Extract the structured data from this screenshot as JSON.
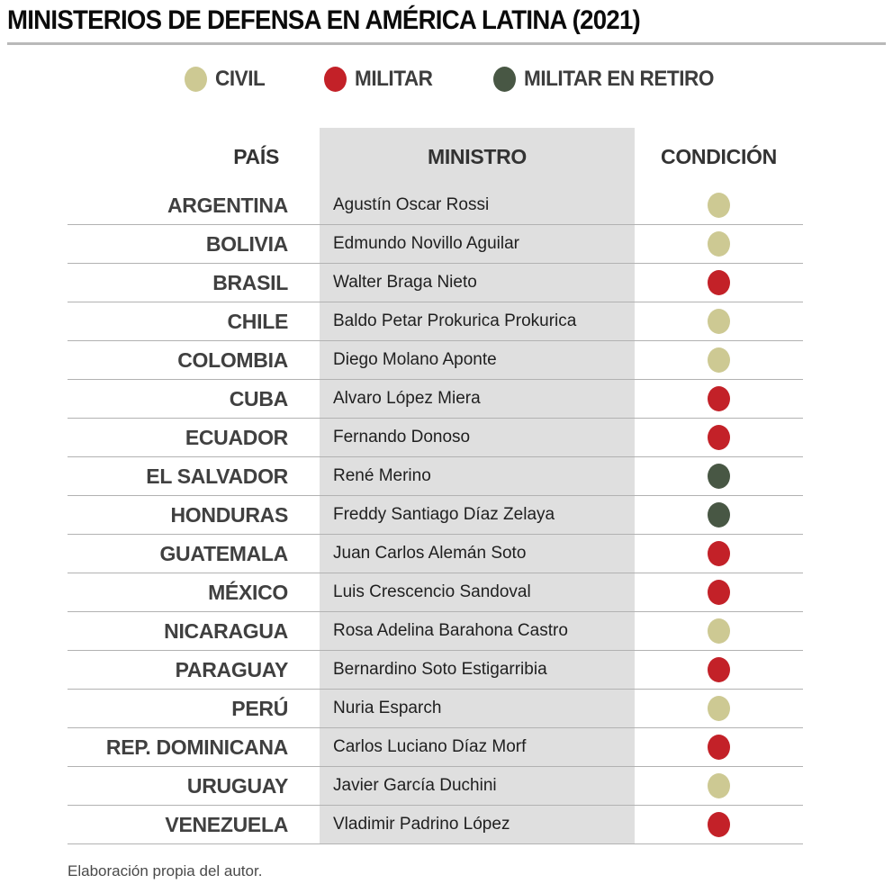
{
  "title": "MINISTERIOS DE DEFENSA EN AMÉRICA LATINA (2021)",
  "colors": {
    "civil": "#cdc993",
    "militar": "#c32128",
    "retiro": "#485744",
    "band": "#dfdfdf"
  },
  "legend": {
    "civil_label": "CIVIL",
    "militar_label": "MILITAR",
    "retiro_label": "MILITAR EN RETIRO"
  },
  "table": {
    "headers": {
      "pais": "PAÍS",
      "ministro": "MINISTRO",
      "condicion": "CONDICIÓN"
    },
    "rows": [
      {
        "pais": "ARGENTINA",
        "ministro": "Agustín Oscar Rossi",
        "condicion": "civil"
      },
      {
        "pais": "BOLIVIA",
        "ministro": "Edmundo Novillo Aguilar",
        "condicion": "civil"
      },
      {
        "pais": "BRASIL",
        "ministro": "Walter Braga Nieto",
        "condicion": "militar"
      },
      {
        "pais": "CHILE",
        "ministro": "Baldo Petar Prokurica Prokurica",
        "condicion": "civil"
      },
      {
        "pais": "COLOMBIA",
        "ministro": "Diego Molano Aponte",
        "condicion": "civil"
      },
      {
        "pais": "CUBA",
        "ministro": "Alvaro López Miera",
        "condicion": "militar"
      },
      {
        "pais": "ECUADOR",
        "ministro": "Fernando Donoso",
        "condicion": "militar"
      },
      {
        "pais": "EL SALVADOR",
        "ministro": "René Merino",
        "condicion": "retiro"
      },
      {
        "pais": "HONDURAS",
        "ministro": "Freddy Santiago Díaz Zelaya",
        "condicion": "retiro"
      },
      {
        "pais": "GUATEMALA",
        "ministro": "Juan Carlos Alemán Soto",
        "condicion": "militar"
      },
      {
        "pais": "MÉXICO",
        "ministro": "Luis Crescencio Sandoval",
        "condicion": "militar"
      },
      {
        "pais": "NICARAGUA",
        "ministro": "Rosa Adelina Barahona Castro",
        "condicion": "civil"
      },
      {
        "pais": "PARAGUAY",
        "ministro": "Bernardino Soto Estigarribia",
        "condicion": "militar"
      },
      {
        "pais": "PERÚ",
        "ministro": "Nuria Esparch",
        "condicion": "civil"
      },
      {
        "pais": "REP. DOMINICANA",
        "ministro": "Carlos Luciano Díaz Morf",
        "condicion": "militar"
      },
      {
        "pais": "URUGUAY",
        "ministro": "Javier García Duchini",
        "condicion": "civil"
      },
      {
        "pais": "VENEZUELA",
        "ministro": "Vladimir Padrino López",
        "condicion": "militar"
      }
    ]
  },
  "footer": "Elaboración propia del autor.",
  "chart_data": {
    "type": "table",
    "title": "MINISTERIOS DE DEFENSA EN AMÉRICA LATINA (2021)",
    "columns": [
      "PAÍS",
      "MINISTRO",
      "CONDICIÓN"
    ],
    "legend": [
      {
        "label": "CIVIL",
        "color": "#cdc993"
      },
      {
        "label": "MILITAR",
        "color": "#c32128"
      },
      {
        "label": "MILITAR EN RETIRO",
        "color": "#485744"
      }
    ],
    "rows": [
      [
        "ARGENTINA",
        "Agustín Oscar Rossi",
        "CIVIL"
      ],
      [
        "BOLIVIA",
        "Edmundo Novillo Aguilar",
        "CIVIL"
      ],
      [
        "BRASIL",
        "Walter Braga Nieto",
        "MILITAR"
      ],
      [
        "CHILE",
        "Baldo Petar Prokurica Prokurica",
        "CIVIL"
      ],
      [
        "COLOMBIA",
        "Diego Molano Aponte",
        "CIVIL"
      ],
      [
        "CUBA",
        "Alvaro López Miera",
        "MILITAR"
      ],
      [
        "ECUADOR",
        "Fernando Donoso",
        "MILITAR"
      ],
      [
        "EL SALVADOR",
        "René Merino",
        "MILITAR EN RETIRO"
      ],
      [
        "HONDURAS",
        "Freddy Santiago Díaz Zelaya",
        "MILITAR EN RETIRO"
      ],
      [
        "GUATEMALA",
        "Juan Carlos Alemán Soto",
        "MILITAR"
      ],
      [
        "MÉXICO",
        "Luis Crescencio Sandoval",
        "MILITAR"
      ],
      [
        "NICARAGUA",
        "Rosa Adelina Barahona Castro",
        "CIVIL"
      ],
      [
        "PARAGUAY",
        "Bernardino Soto Estigarribia",
        "MILITAR"
      ],
      [
        "PERÚ",
        "Nuria Esparch",
        "CIVIL"
      ],
      [
        "REP. DOMINICANA",
        "Carlos Luciano Díaz Morf",
        "MILITAR"
      ],
      [
        "URUGUAY",
        "Javier García Duchini",
        "CIVIL"
      ],
      [
        "VENEZUELA",
        "Vladimir Padrino López",
        "MILITAR"
      ]
    ],
    "source_note": "Elaboración propia del autor."
  }
}
